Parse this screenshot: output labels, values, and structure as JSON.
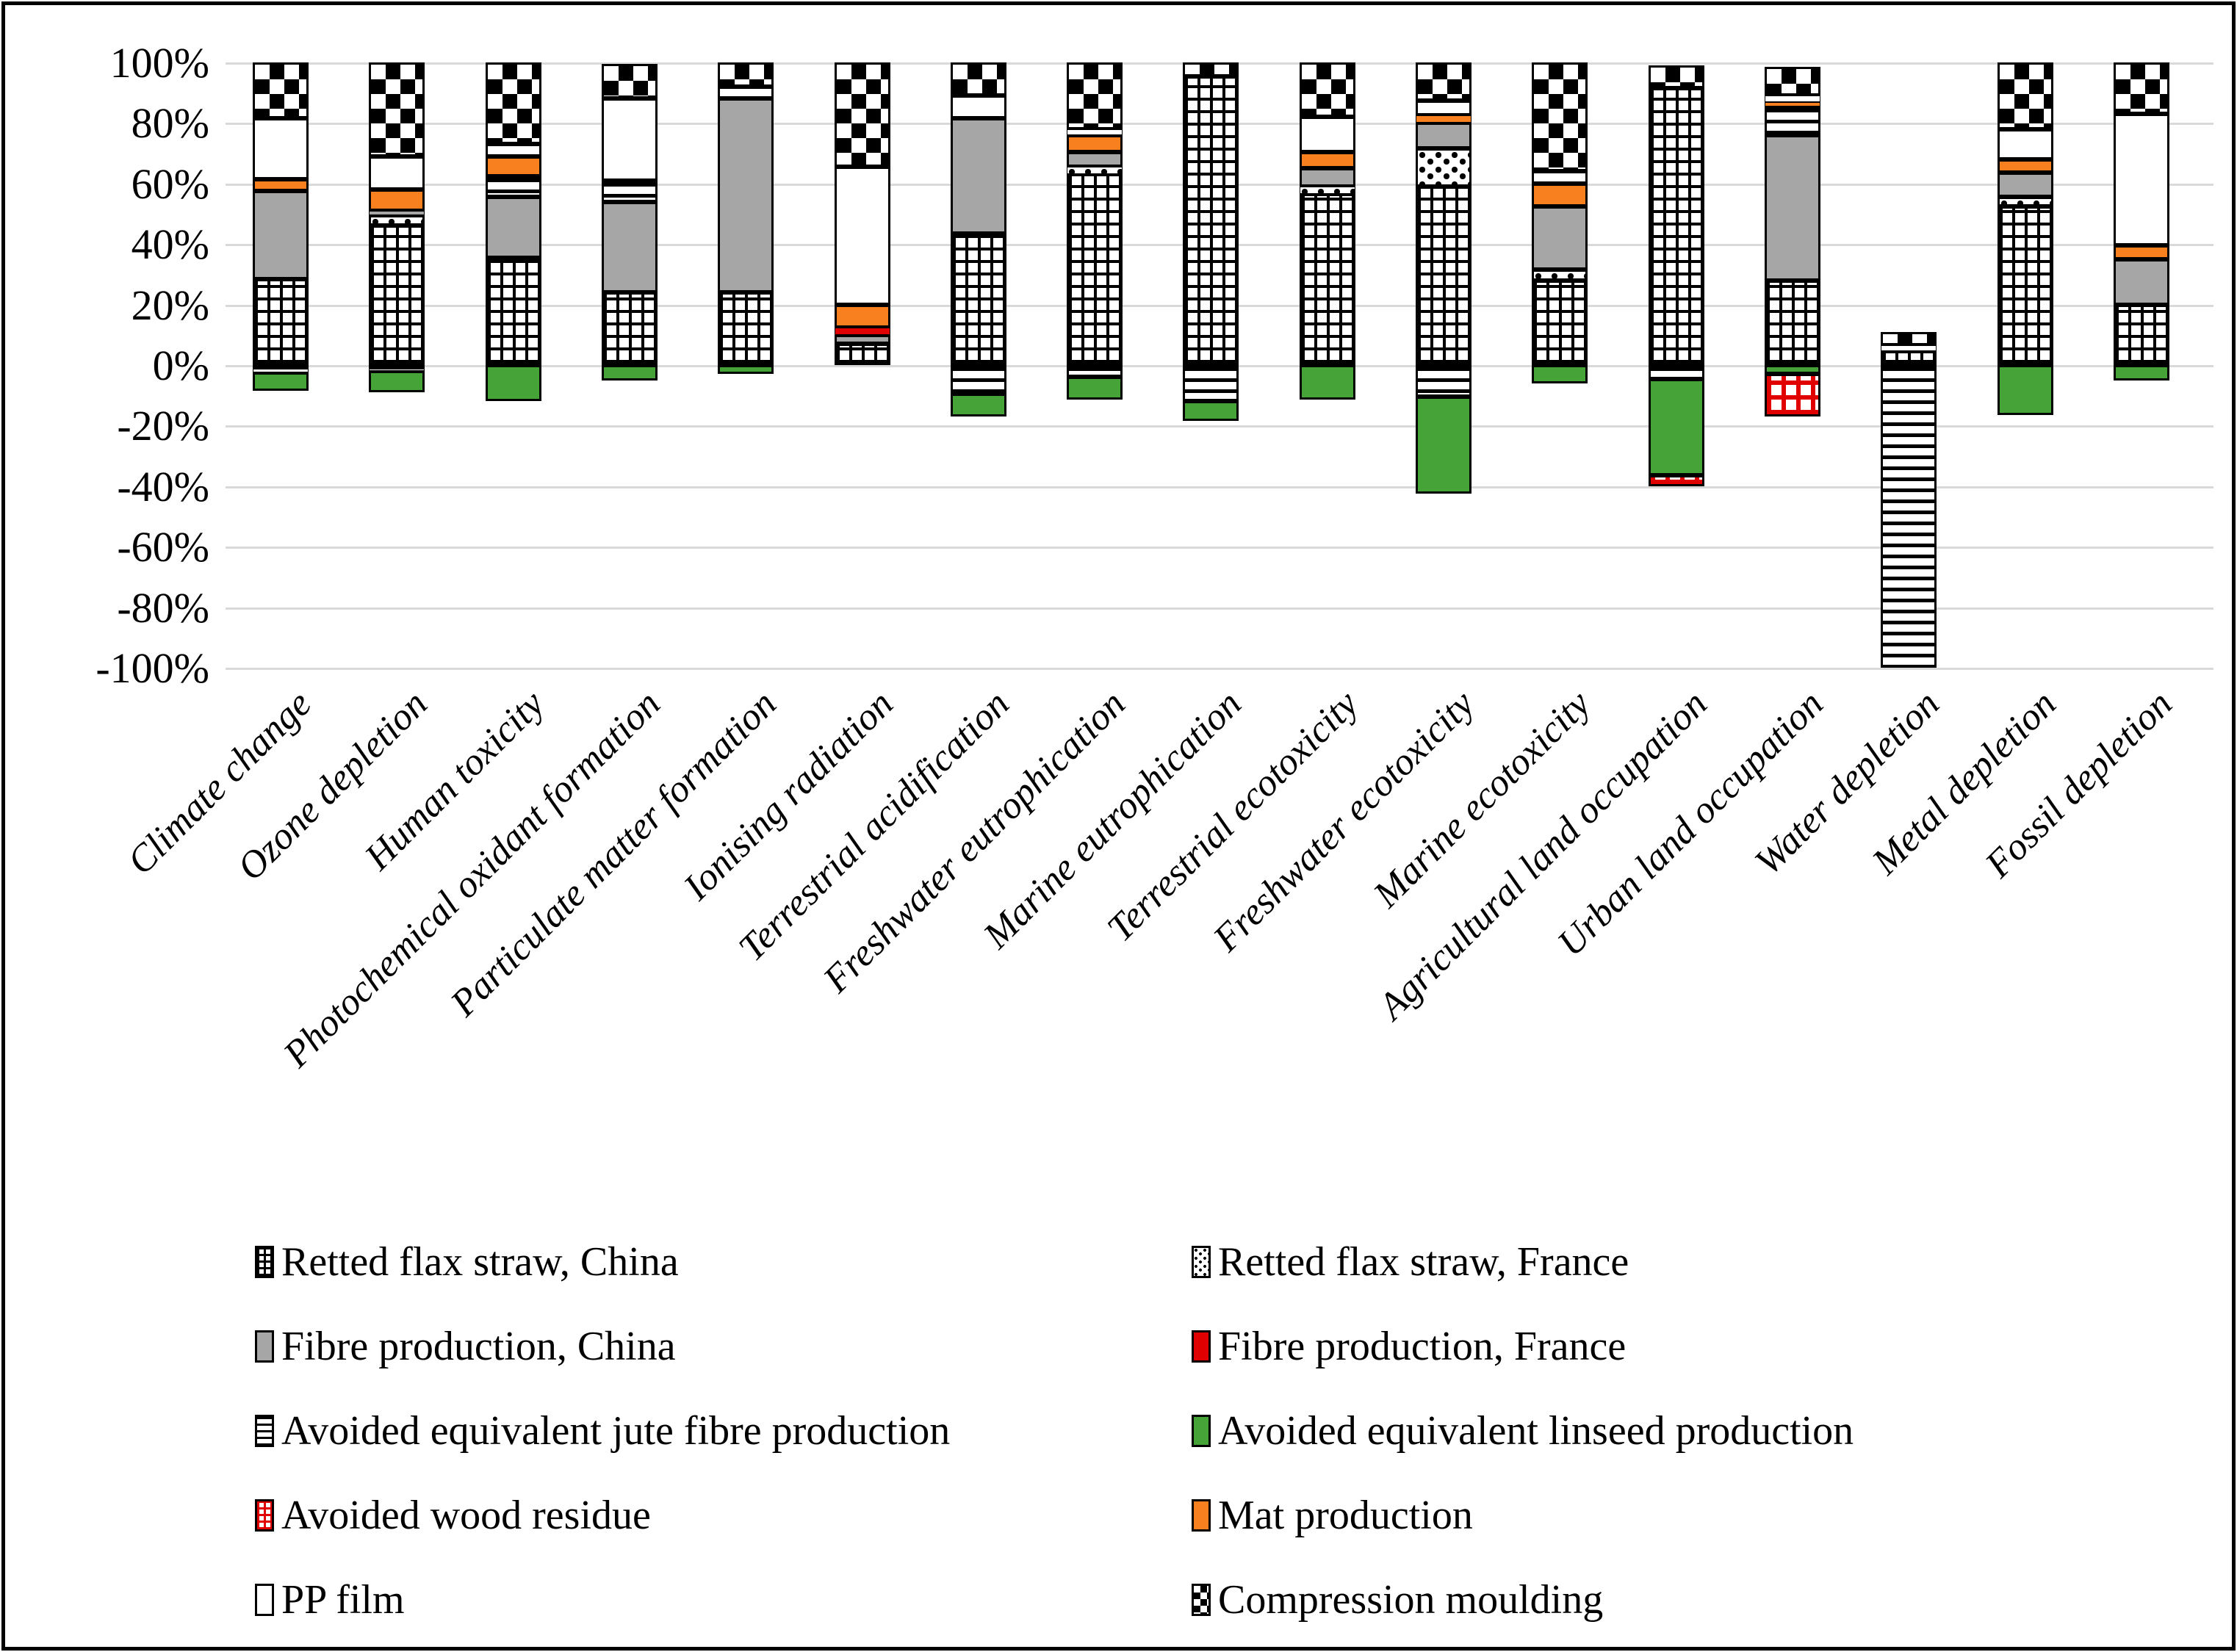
{
  "chart_data": {
    "type": "bar",
    "subtype": "stacked-percentage-with-negatives",
    "title": "",
    "xlabel": "",
    "ylabel": "",
    "grid": true,
    "legend_position": "bottom-two-columns",
    "y_axis": {
      "min": -100,
      "max": 100,
      "step": 20,
      "ticks": [
        "100%",
        "80%",
        "60%",
        "40%",
        "20%",
        "0%",
        "-20%",
        "-40%",
        "-60%",
        "-80%",
        "-100%"
      ]
    },
    "categories": [
      "Climate change",
      "Ozone depletion",
      "Human toxicity",
      "Photochemical oxidant formation",
      "Particulate matter formation",
      "Ionising radiation",
      "Terrestrial acidification",
      "Freshwater eutrophication",
      "Marine eutrophication",
      "Terrestrial ecotoxicity",
      "Freshwater ecotoxicity",
      "Marine ecotoxicity",
      "Agricultural land occupation",
      "Urban land occupation",
      "Water depletion",
      "Metal depletion",
      "Fossil depletion"
    ],
    "series": [
      {
        "name": "Retted flax straw, China",
        "pattern": "grid-black",
        "color": "#000000",
        "values": [
          28.5,
          46,
          35.5,
          24,
          24,
          7,
          43.5,
          63,
          95.5,
          56.5,
          59,
          28,
          91.5,
          28,
          4.5,
          52.5,
          20
        ]
      },
      {
        "name": "Retted flax straw, France",
        "pattern": "speckle",
        "color": "#000000",
        "values": [
          0,
          3.5,
          0,
          0,
          0,
          0,
          0,
          2.5,
          0,
          2.5,
          12.5,
          3.5,
          0,
          0,
          0,
          3,
          0
        ]
      },
      {
        "name": "Fibre production, China",
        "pattern": "solid",
        "color": "#a6a6a6",
        "values": [
          29,
          1.5,
          20,
          30,
          64,
          3,
          38,
          5,
          0,
          6,
          8.5,
          21,
          0,
          48,
          0,
          8,
          15
        ]
      },
      {
        "name": "Fibre production, France",
        "pattern": "solid",
        "color": "#e10000",
        "values": [
          0,
          0,
          0,
          0,
          0,
          2.5,
          0,
          0,
          0,
          0,
          0,
          0,
          0,
          0,
          0,
          0,
          0
        ]
      },
      {
        "name": "Avoided equivalent jute fibre production",
        "pattern": "hlines",
        "color": "#000000",
        "values": [
          -2.5,
          -2,
          7,
          7,
          0,
          0,
          -9.5,
          -4,
          -12,
          0,
          -10.5,
          0,
          -4.5,
          9.5,
          -100,
          0,
          0
        ]
      },
      {
        "name": "Avoided equivalent linseed production",
        "pattern": "solid",
        "color": "#46a338",
        "values": [
          -6,
          -7,
          -12,
          -5,
          -3,
          0,
          -7.5,
          -7.5,
          -6.5,
          -11.5,
          -32,
          -6,
          -32,
          -3,
          0,
          -16.5,
          -5
        ]
      },
      {
        "name": "Avoided wood residue",
        "pattern": "grid-red",
        "color": "#e10000",
        "values": [
          0,
          0,
          0,
          0,
          0,
          0,
          0,
          0,
          0,
          0,
          0,
          0,
          -3.5,
          -14,
          0,
          0,
          0
        ]
      },
      {
        "name": "Mat production",
        "pattern": "solid",
        "color": "#f8801e",
        "values": [
          4,
          7,
          6.5,
          0,
          0,
          7.5,
          0,
          5.5,
          0,
          5.5,
          2.5,
          7.5,
          0,
          1.5,
          0,
          4.5,
          4.5
        ]
      },
      {
        "name": "PP film",
        "pattern": "solid",
        "color": "#ffffff",
        "values": [
          20,
          11,
          4,
          27,
          4,
          45.5,
          7.5,
          2,
          0,
          11.5,
          5,
          4,
          0,
          2,
          2,
          10,
          43.5
        ]
      },
      {
        "name": "Compression moulding",
        "pattern": "checker",
        "color": "#000000",
        "values": [
          18.5,
          31,
          27,
          11.5,
          8,
          34.5,
          11,
          22,
          4.5,
          18,
          12.5,
          36,
          7.5,
          9.5,
          4.5,
          22,
          17
        ]
      }
    ],
    "legend": {
      "left_column_series": [
        0,
        2,
        4,
        6,
        8
      ],
      "right_column_series": [
        1,
        3,
        5,
        7,
        9
      ]
    },
    "colors": {
      "gridline": "#d9d9d9",
      "frame_border": "#000000",
      "gray_series": "#a6a6a6",
      "red_series": "#e10000",
      "green_series": "#46a338",
      "orange_series": "#f8801e"
    }
  }
}
